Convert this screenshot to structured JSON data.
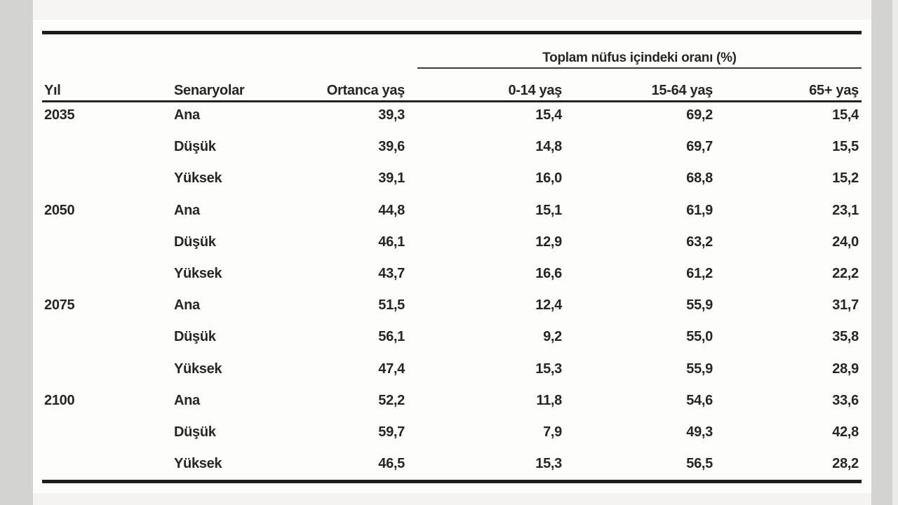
{
  "page": {
    "background": "#fdfdfc",
    "gutter_color": "#d3d3d1",
    "strip_color": "#f6f5f3",
    "rule_color": "#1d1d1d",
    "text_color": "#262626"
  },
  "table": {
    "span_header": "Toplam nüfus içindeki oranı (%)",
    "columns": {
      "year": "Yıl",
      "scenario": "Senaryolar",
      "median_age": "Ortanca yaş",
      "age_0_14": "0-14 yaş",
      "age_15_64": "15-64 yaş",
      "age_65_plus": "65+ yaş"
    },
    "rows": [
      {
        "year": "2035",
        "scenario": "Ana",
        "median_age": "39,3",
        "age_0_14": "15,4",
        "age_15_64": "69,2",
        "age_65_plus": "15,4"
      },
      {
        "year": "",
        "scenario": "Düşük",
        "median_age": "39,6",
        "age_0_14": "14,8",
        "age_15_64": "69,7",
        "age_65_plus": "15,5"
      },
      {
        "year": "",
        "scenario": "Yüksek",
        "median_age": "39,1",
        "age_0_14": "16,0",
        "age_15_64": "68,8",
        "age_65_plus": "15,2"
      },
      {
        "year": "2050",
        "scenario": "Ana",
        "median_age": "44,8",
        "age_0_14": "15,1",
        "age_15_64": "61,9",
        "age_65_plus": "23,1"
      },
      {
        "year": "",
        "scenario": "Düşük",
        "median_age": "46,1",
        "age_0_14": "12,9",
        "age_15_64": "63,2",
        "age_65_plus": "24,0"
      },
      {
        "year": "",
        "scenario": "Yüksek",
        "median_age": "43,7",
        "age_0_14": "16,6",
        "age_15_64": "61,2",
        "age_65_plus": "22,2"
      },
      {
        "year": "2075",
        "scenario": "Ana",
        "median_age": "51,5",
        "age_0_14": "12,4",
        "age_15_64": "55,9",
        "age_65_plus": "31,7"
      },
      {
        "year": "",
        "scenario": "Düşük",
        "median_age": "56,1",
        "age_0_14": "9,2",
        "age_15_64": "55,0",
        "age_65_plus": "35,8"
      },
      {
        "year": "",
        "scenario": "Yüksek",
        "median_age": "47,4",
        "age_0_14": "15,3",
        "age_15_64": "55,9",
        "age_65_plus": "28,9"
      },
      {
        "year": "2100",
        "scenario": "Ana",
        "median_age": "52,2",
        "age_0_14": "11,8",
        "age_15_64": "54,6",
        "age_65_plus": "33,6"
      },
      {
        "year": "",
        "scenario": "Düşük",
        "median_age": "59,7",
        "age_0_14": "7,9",
        "age_15_64": "49,3",
        "age_65_plus": "42,8"
      },
      {
        "year": "",
        "scenario": "Yüksek",
        "median_age": "46,5",
        "age_0_14": "15,3",
        "age_15_64": "56,5",
        "age_65_plus": "28,2"
      }
    ]
  }
}
